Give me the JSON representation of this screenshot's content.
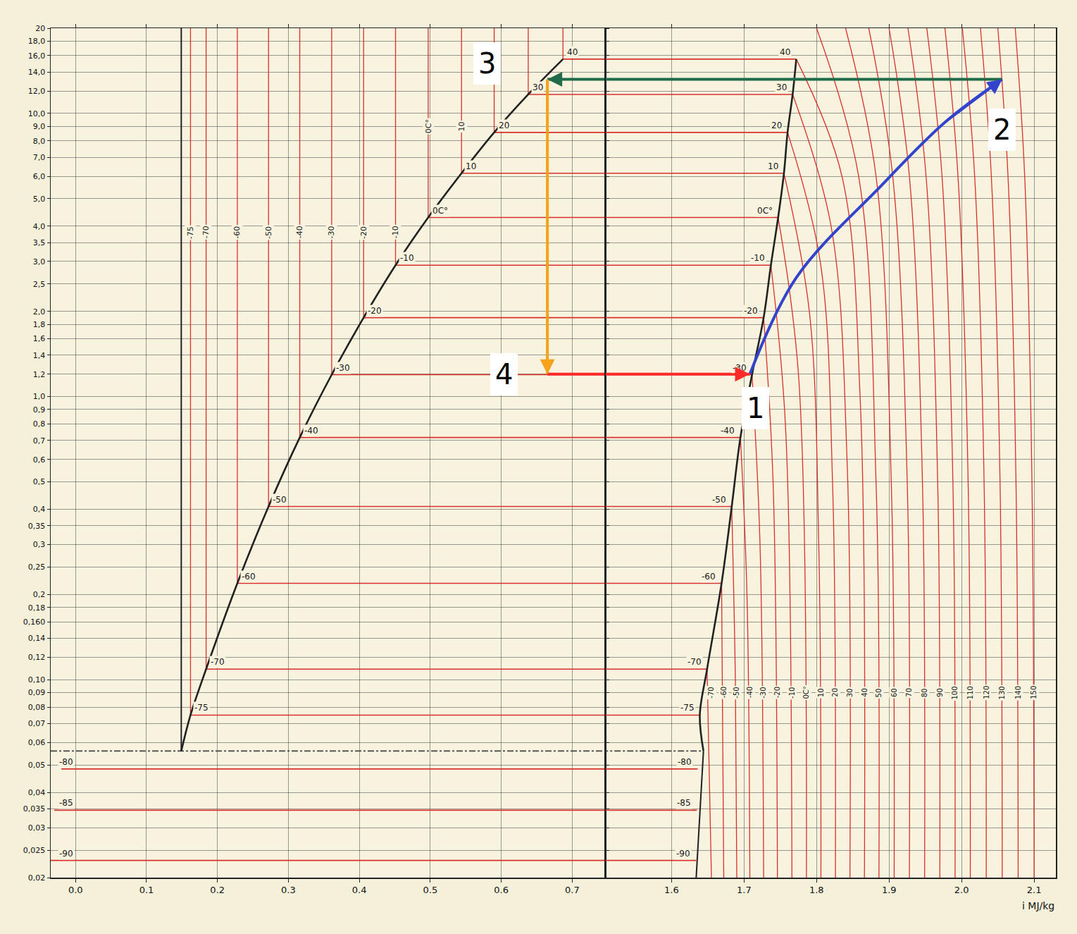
{
  "chart_data": {
    "type": "line",
    "log": "y",
    "grid": true,
    "x_label": "i MJ/kg",
    "xlim": [
      -0.035,
      0.747
    ],
    "xticks": [
      {
        "value": 0,
        "label": "0.0"
      },
      0.1,
      0.2,
      0.3,
      0.4,
      0.5,
      0.6,
      0.7
    ],
    "x2lim": [
      1.509,
      2.13
    ],
    "x2ticks": [
      1.6,
      1.7,
      1.8,
      1.9,
      {
        "value": 2,
        "label": "2.0"
      },
      2.1
    ],
    "ylim": [
      0.02,
      20
    ],
    "yticks": [
      20,
      {
        "value": 18,
        "label": "18,0"
      },
      {
        "value": 16,
        "label": "16,0"
      },
      {
        "value": 14,
        "label": "14,0"
      },
      {
        "value": 12,
        "label": "12,0"
      },
      {
        "value": 10,
        "label": "10,0"
      },
      {
        "value": 9,
        "label": "9,0"
      },
      {
        "value": 8,
        "label": "8,0"
      },
      {
        "value": 7,
        "label": "7,0"
      },
      {
        "value": 6,
        "label": "6,0"
      },
      {
        "value": 5,
        "label": "5,0"
      },
      {
        "value": 4,
        "label": "4,0"
      },
      {
        "value": 3.5,
        "label": "3,5"
      },
      {
        "value": 3,
        "label": "3,0"
      },
      {
        "value": 2.5,
        "label": "2,5"
      },
      {
        "value": 2,
        "label": "2,0"
      },
      {
        "value": 1.8,
        "label": "1,8"
      },
      {
        "value": 1.6,
        "label": "1,6"
      },
      {
        "value": 1.4,
        "label": "1,4"
      },
      {
        "value": 1.2,
        "label": "1,2"
      },
      {
        "value": 1,
        "label": "1,0"
      },
      {
        "value": 0.9,
        "label": "0,9"
      },
      {
        "value": 0.8,
        "label": "0,8"
      },
      {
        "value": 0.7,
        "label": "0,7"
      },
      {
        "value": 0.6,
        "label": "0,6"
      },
      {
        "value": 0.5,
        "label": "0,5"
      },
      {
        "value": 0.4,
        "label": "0,4"
      },
      {
        "value": 0.35,
        "label": "0,35"
      },
      {
        "value": 0.3,
        "label": "0,3"
      },
      {
        "value": 0.25,
        "label": "0,25"
      },
      {
        "value": 0.2,
        "label": "0,2"
      },
      {
        "value": 0.18,
        "label": "0,18"
      },
      {
        "value": 0.16,
        "label": "0,160"
      },
      {
        "value": 0.14,
        "label": "0,14"
      },
      {
        "value": 0.12,
        "label": "0,12"
      },
      {
        "value": 0.1,
        "label": "0,10"
      },
      {
        "value": 0.09,
        "label": "0,09"
      },
      {
        "value": 0.08,
        "label": "0,08"
      },
      {
        "value": 0.07,
        "label": "0,07"
      },
      {
        "value": 0.06,
        "label": "0,06"
      },
      {
        "value": 0.05,
        "label": "0,05"
      },
      {
        "value": 0.04,
        "label": "0,04"
      },
      {
        "value": 0.035,
        "label": "0,035"
      },
      {
        "value": 0.03,
        "label": "0,03"
      },
      {
        "value": 0.025,
        "label": "0,025"
      },
      {
        "value": 0.02,
        "label": "0,02"
      }
    ],
    "saturation": [
      {
        "label": "-75",
        "p": 0.075,
        "i_liquid": 0.162,
        "i_vapor": 1.639
      },
      {
        "label": "-70",
        "p": 0.109,
        "i_liquid": 0.184,
        "i_vapor": 1.649
      },
      {
        "label": "-60",
        "p": 0.219,
        "i_liquid": 0.228,
        "i_vapor": 1.669
      },
      {
        "label": "-50",
        "p": 0.409,
        "i_liquid": 0.272,
        "i_vapor": 1.683
      },
      {
        "label": "-40",
        "p": 0.717,
        "i_liquid": 0.316,
        "i_vapor": 1.695
      },
      {
        "label": "-30",
        "p": 1.195,
        "i_liquid": 0.361,
        "i_vapor": 1.711
      },
      {
        "label": "-20",
        "p": 1.9,
        "i_liquid": 0.406,
        "i_vapor": 1.727
      },
      {
        "label": "-10",
        "p": 2.91,
        "i_liquid": 0.451,
        "i_vapor": 1.737
      },
      {
        "label": "0C°",
        "p": 4.29,
        "i_liquid": 0.497,
        "i_vapor": 1.747
      },
      {
        "label": "10",
        "p": 6.15,
        "i_liquid": 0.544,
        "i_vapor": 1.755
      },
      {
        "label": "20",
        "p": 8.57,
        "i_liquid": 0.59,
        "i_vapor": 1.76
      },
      {
        "label": "30",
        "p": 11.67,
        "i_liquid": 0.638,
        "i_vapor": 1.767
      },
      {
        "label": "40",
        "p": 15.55,
        "i_liquid": 0.687,
        "i_vapor": 1.772
      }
    ],
    "triple_point": {
      "p": 0.056,
      "i_liquid": 0.149,
      "i_vapor": 1.644
    },
    "sublimation_line": {
      "i": [
        1.644,
        1.634
      ],
      "p": [
        0.056,
        0.02
      ]
    },
    "sublimation_isotherms": [
      {
        "label": "-80",
        "p": 0.0484,
        "i_solid": -0.02,
        "i_vapor": 1.636
      },
      {
        "label": "-85",
        "p": 0.0346,
        "i_solid": -0.03,
        "i_vapor": 1.635
      },
      {
        "label": "-90",
        "p": 0.023,
        "i_solid": -0.04,
        "i_vapor": 1.634
      }
    ],
    "superheated_isotherms": [
      {
        "label": "-70",
        "p": [
          0.109,
          0.02
        ],
        "i": [
          1.649,
          1.655
        ]
      },
      {
        "label": "-60",
        "p": [
          0.219,
          0.02
        ],
        "i": [
          1.669,
          1.672
        ]
      },
      {
        "label": "-50",
        "p": [
          0.409,
          0.1,
          0.02
        ],
        "i": [
          1.683,
          1.688,
          1.69
        ]
      },
      {
        "label": "-40",
        "p": [
          0.717,
          0.2,
          0.02
        ],
        "i": [
          1.695,
          1.704,
          1.708
        ]
      },
      {
        "label": "-30",
        "p": [
          1.195,
          0.3,
          0.02
        ],
        "i": [
          1.711,
          1.722,
          1.727
        ]
      },
      {
        "label": "-20",
        "p": [
          1.9,
          0.5,
          0.02
        ],
        "i": [
          1.727,
          1.74,
          1.746
        ]
      },
      {
        "label": "-10",
        "p": [
          2.91,
          0.8,
          0.02
        ],
        "i": [
          1.737,
          1.757,
          1.766
        ]
      },
      {
        "label": "0C°",
        "p": [
          4.29,
          1.2,
          0.02
        ],
        "i": [
          1.747,
          1.775,
          1.786
        ]
      },
      {
        "label": "10",
        "p": [
          6.15,
          2,
          0.3,
          0.02
        ],
        "i": [
          1.755,
          1.79,
          1.803,
          1.806
        ]
      },
      {
        "label": "20",
        "p": [
          8.57,
          3,
          0.5,
          0.02
        ],
        "i": [
          1.76,
          1.805,
          1.822,
          1.826
        ]
      },
      {
        "label": "30",
        "p": [
          11.67,
          4,
          0.6,
          0.02
        ],
        "i": [
          1.767,
          1.82,
          1.842,
          1.846
        ]
      },
      {
        "label": "40",
        "p": [
          15.55,
          6,
          1,
          0.02
        ],
        "i": [
          1.772,
          1.835,
          1.86,
          1.866
        ]
      },
      {
        "label": "50",
        "p": [
          20,
          6,
          0.5,
          0.02
        ],
        "i": [
          1.8,
          1.858,
          1.882,
          1.886
        ]
      },
      {
        "label": "60",
        "p": [
          20,
          6,
          0.5,
          0.02
        ],
        "i": [
          1.84,
          1.882,
          1.903,
          1.907
        ]
      },
      {
        "label": "70",
        "p": [
          20,
          6,
          0.5,
          0.02
        ],
        "i": [
          1.872,
          1.905,
          1.925,
          1.928
        ]
      },
      {
        "label": "80",
        "p": [
          20,
          6,
          0.5,
          0.02
        ],
        "i": [
          1.9,
          1.928,
          1.946,
          1.949
        ]
      },
      {
        "label": "90",
        "p": [
          20,
          6,
          0.5,
          0.02
        ],
        "i": [
          1.926,
          1.951,
          1.967,
          1.97
        ]
      },
      {
        "label": "100",
        "p": [
          20,
          6,
          0.5,
          0.02
        ],
        "i": [
          1.952,
          1.973,
          1.988,
          1.991
        ]
      },
      {
        "label": "110",
        "p": [
          20,
          6,
          0.5,
          0.02
        ],
        "i": [
          1.977,
          1.995,
          2.009,
          2.012
        ]
      },
      {
        "label": "120",
        "p": [
          20,
          6,
          0.5,
          0.02
        ],
        "i": [
          2.001,
          2.018,
          2.031,
          2.034
        ]
      },
      {
        "label": "130",
        "p": [
          20,
          6,
          0.5,
          0.02
        ],
        "i": [
          2.026,
          2.041,
          2.053,
          2.056
        ]
      },
      {
        "label": "140",
        "p": [
          20,
          6,
          0.5,
          0.02
        ],
        "i": [
          2.05,
          2.064,
          2.075,
          2.078
        ]
      },
      {
        "label": "150",
        "p": [
          20,
          6,
          0.5,
          0.02
        ],
        "i": [
          2.074,
          2.087,
          2.097,
          2.1
        ]
      }
    ],
    "cycle": {
      "points": [
        {
          "label": "1",
          "i": 1.708,
          "p": 1.2
        },
        {
          "label": "2",
          "i": 2.056,
          "p": 13.2
        },
        {
          "label": "3",
          "i": 0.665,
          "p": 13.2
        },
        {
          "label": "4",
          "i": 0.665,
          "p": 1.2
        }
      ],
      "segments": [
        {
          "from": "1",
          "to": "2",
          "color": "#3344cc",
          "path": {
            "i": [
              1.708,
              1.772,
              1.889,
              1.977,
              2.056
            ],
            "p": [
              1.2,
              2.63,
              5.55,
              9.3,
              13.2
            ]
          }
        },
        {
          "from": "2",
          "to": "3",
          "color": "#1f6b4a"
        },
        {
          "from": "3",
          "to": "4",
          "color": "#f5a31a"
        },
        {
          "from": "4",
          "to": "1",
          "color": "#ff2a2a"
        }
      ]
    }
  }
}
